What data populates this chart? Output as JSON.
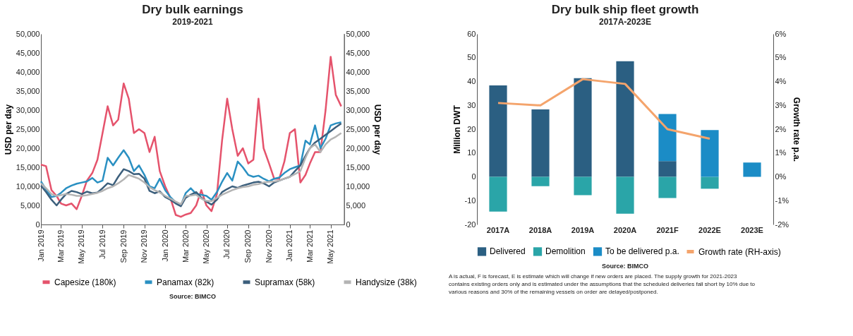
{
  "chart_data": [
    {
      "type": "line",
      "title": "Dry bulk earnings",
      "subtitle": "2019-2021",
      "ylabel": "USD per day",
      "y2label": "USD per day",
      "x": [
        "2019-01-01",
        "2019-01-16",
        "2019-02-01",
        "2019-02-16",
        "2019-03-01",
        "2019-03-16",
        "2019-04-01",
        "2019-04-16",
        "2019-05-01",
        "2019-05-16",
        "2019-06-01",
        "2019-06-16",
        "2019-07-01",
        "2019-07-16",
        "2019-08-01",
        "2019-08-16",
        "2019-09-01",
        "2019-09-16",
        "2019-10-01",
        "2019-10-16",
        "2019-11-01",
        "2019-11-16",
        "2019-12-01",
        "2019-12-16",
        "2020-01-01",
        "2020-01-16",
        "2020-02-01",
        "2020-02-16",
        "2020-03-01",
        "2020-03-16",
        "2020-04-01",
        "2020-04-16",
        "2020-05-01",
        "2020-05-16",
        "2020-06-01",
        "2020-06-16",
        "2020-07-01",
        "2020-07-16",
        "2020-08-01",
        "2020-08-16",
        "2020-09-01",
        "2020-09-16",
        "2020-10-01",
        "2020-10-16",
        "2020-11-01",
        "2020-11-16",
        "2020-12-01",
        "2020-12-16",
        "2021-01-01",
        "2021-01-16",
        "2021-02-01",
        "2021-02-16",
        "2021-03-01",
        "2021-03-16",
        "2021-04-01",
        "2021-04-16",
        "2021-05-01",
        "2021-05-16",
        "2021-06-01"
      ],
      "xlim": [
        "2019-01-01",
        "2021-06-10"
      ],
      "xticks": [
        {
          "value": "2019-01",
          "label": "Jan 2019"
        },
        {
          "value": "2019-03",
          "label": "Mar 2019"
        },
        {
          "value": "2019-05",
          "label": "May 2019"
        },
        {
          "value": "2019-07",
          "label": "Jul 2019"
        },
        {
          "value": "2019-09",
          "label": "Sep 2019"
        },
        {
          "value": "2019-11",
          "label": "Nov 2019"
        },
        {
          "value": "2020-01",
          "label": "Jan 2020"
        },
        {
          "value": "2020-03",
          "label": "Mar 2020"
        },
        {
          "value": "2020-05",
          "label": "May 2020"
        },
        {
          "value": "2020-07",
          "label": "Jul 2020"
        },
        {
          "value": "2020-09",
          "label": "Sep 2020"
        },
        {
          "value": "2020-11",
          "label": "Nov 2020"
        },
        {
          "value": "2021-01",
          "label": "Jan 2021"
        },
        {
          "value": "2021-03",
          "label": "Mar 2021"
        },
        {
          "value": "2021-05",
          "label": "May 2021"
        }
      ],
      "ylim": [
        0,
        50000
      ],
      "yticks": [
        0,
        {
          "value": 5000,
          "label": "5,000"
        },
        {
          "value": 10000,
          "label": "10,000"
        },
        {
          "value": 15000,
          "label": "15,000"
        },
        {
          "value": 20000,
          "label": "20,000"
        },
        {
          "value": 25000,
          "label": "25,000"
        },
        {
          "value": 30000,
          "label": "30,000"
        },
        {
          "value": 35000,
          "label": "35,000"
        },
        {
          "value": 40000,
          "label": "40,000"
        },
        {
          "value": 45000,
          "label": "45,000"
        },
        {
          "value": 50000,
          "label": "50,000"
        }
      ],
      "y2lim": [
        0,
        50000
      ],
      "y2ticks": [
        0,
        {
          "value": 5000,
          "label": "5,000"
        },
        {
          "value": 10000,
          "label": "10,000"
        },
        {
          "value": 15000,
          "label": "15,000"
        },
        {
          "value": 20000,
          "label": "20,000"
        },
        {
          "value": 25000,
          "label": "25,000"
        },
        {
          "value": 30000,
          "label": "30,000"
        },
        {
          "value": 35000,
          "label": "35,000"
        },
        {
          "value": 40000,
          "label": "40,000"
        },
        {
          "value": 45000,
          "label": "45,000"
        },
        {
          "value": 50000,
          "label": "50,000"
        }
      ],
      "series": [
        {
          "name": "Capesize (180k)",
          "color": "#e5536c",
          "values": [
            15700,
            15300,
            9000,
            7500,
            5500,
            5000,
            5500,
            4000,
            7500,
            11500,
            13500,
            17000,
            24000,
            31000,
            26000,
            27500,
            37000,
            33000,
            24000,
            25000,
            24000,
            19000,
            23000,
            14000,
            10000,
            7000,
            2500,
            2000,
            2600,
            3000,
            5000,
            9000,
            5000,
            3500,
            8000,
            22000,
            33000,
            25000,
            18000,
            20000,
            16000,
            17000,
            33000,
            20000,
            16000,
            12000,
            12000,
            16500,
            24000,
            25000,
            11000,
            13000,
            16000,
            19000,
            19000,
            30000,
            44000,
            34000,
            31000
          ]
        },
        {
          "name": "Panamax (82k)",
          "color": "#2a90c2",
          "values": [
            11300,
            9200,
            7200,
            7500,
            8300,
            9500,
            10200,
            10700,
            11000,
            11300,
            12200,
            11000,
            11500,
            17500,
            15500,
            17500,
            19500,
            17500,
            14000,
            15500,
            13000,
            10000,
            9500,
            12000,
            9000,
            7200,
            5800,
            5000,
            8200,
            9500,
            8000,
            7800,
            7500,
            6500,
            8500,
            11200,
            13500,
            11500,
            16500,
            15000,
            13000,
            12500,
            12800,
            12000,
            11300,
            12000,
            12300,
            13500,
            14500,
            15000,
            15500,
            22000,
            21000,
            26000,
            20000,
            22500,
            26000,
            26500,
            26800
          ]
        },
        {
          "name": "Supramax (58k)",
          "color": "#3c5f7c",
          "values": [
            10200,
            8500,
            6500,
            5000,
            6500,
            8000,
            8800,
            8500,
            8000,
            8600,
            8200,
            8400,
            9500,
            10800,
            10300,
            12500,
            14500,
            14000,
            13200,
            13300,
            12000,
            8800,
            8200,
            8700,
            7200,
            6500,
            5500,
            4800,
            7000,
            7800,
            8500,
            7000,
            6000,
            5200,
            6500,
            8500,
            9300,
            10000,
            9600,
            10200,
            10600,
            11000,
            11200,
            10800,
            10000,
            11000,
            11500,
            12000,
            12500,
            14000,
            15500,
            18000,
            20000,
            21500,
            22500,
            23500,
            24500,
            25500,
            26500
          ]
        },
        {
          "name": "Handysize (38k)",
          "color": "#b4b4b4",
          "values": [
            10800,
            9500,
            8000,
            7500,
            7700,
            8000,
            7800,
            7500,
            7500,
            7700,
            8000,
            8300,
            8800,
            9500,
            10000,
            10800,
            11800,
            13000,
            12500,
            12000,
            11000,
            9800,
            9000,
            8400,
            7500,
            6800,
            6000,
            5300,
            7500,
            7600,
            7800,
            6800,
            6200,
            6100,
            7000,
            7800,
            8400,
            9000,
            9500,
            9800,
            10000,
            10400,
            10600,
            11000,
            11200,
            11300,
            11500,
            12000,
            12500,
            13200,
            14000,
            17500,
            20000,
            21000,
            19000,
            21000,
            22300,
            23000,
            24000
          ]
        }
      ],
      "legend": "bottom",
      "line_style": "solid",
      "marker": "none",
      "annotations": [
        "Source: BIMCO"
      ]
    },
    {
      "type": "bar",
      "title": "Dry bulk ship fleet growth",
      "subtitle": "2017A-2023E",
      "ylabel": "Million DWT",
      "y2label": "Growth rate p.a.",
      "categories": [
        "2017A",
        "2018A",
        "2019A",
        "2020A",
        "2021F",
        "2022E",
        "2023E"
      ],
      "stacked": true,
      "ylim": [
        -20,
        60
      ],
      "yticks": [
        -20,
        -10,
        0,
        10,
        20,
        30,
        40,
        50,
        60
      ],
      "y2lim": [
        -2,
        6
      ],
      "y2ticks": [
        {
          "value": -2,
          "label": "-2%"
        },
        {
          "value": -1,
          "label": "-1%"
        },
        {
          "value": 0,
          "label": "0%"
        },
        {
          "value": 1,
          "label": "1%"
        },
        {
          "value": 2,
          "label": "2%"
        },
        {
          "value": 3,
          "label": "3%"
        },
        {
          "value": 4,
          "label": "4%"
        },
        {
          "value": 5,
          "label": "5%"
        },
        {
          "value": 6,
          "label": "6%"
        }
      ],
      "series": [
        {
          "name": "Delivered",
          "color": "#2b5f82",
          "values": [
            38.4,
            28.3,
            41.4,
            48.5,
            6.6,
            null,
            null
          ]
        },
        {
          "name": "Demolition",
          "color": "#2aa5a8",
          "values": [
            -14.6,
            -3.9,
            -7.7,
            -15.5,
            -8.9,
            -5.0,
            null
          ]
        },
        {
          "name": "To be delivered p.a.",
          "color": "#1b8cc6",
          "values": [
            null,
            null,
            null,
            null,
            19.8,
            19.6,
            6.0
          ]
        },
        {
          "name": "Growth rate (RH-axis)",
          "type": "line",
          "axis": "y2",
          "color": "#f4a46c",
          "values": [
            3.1,
            3.0,
            4.1,
            3.9,
            2.0,
            1.6,
            null
          ]
        }
      ],
      "legend": "bottom",
      "annotations": [
        "Source: BIMCO",
        "A is actual, F is forecast, E is estimate which will change if new orders are placed. The supply growth for 2021-2023 contains existing orders only and is estimated under the assumptions that the scheduled deliveries fall short by 10% due to various reasons and 30% of the remaining vessels on order are delayed/postponed."
      ]
    }
  ]
}
